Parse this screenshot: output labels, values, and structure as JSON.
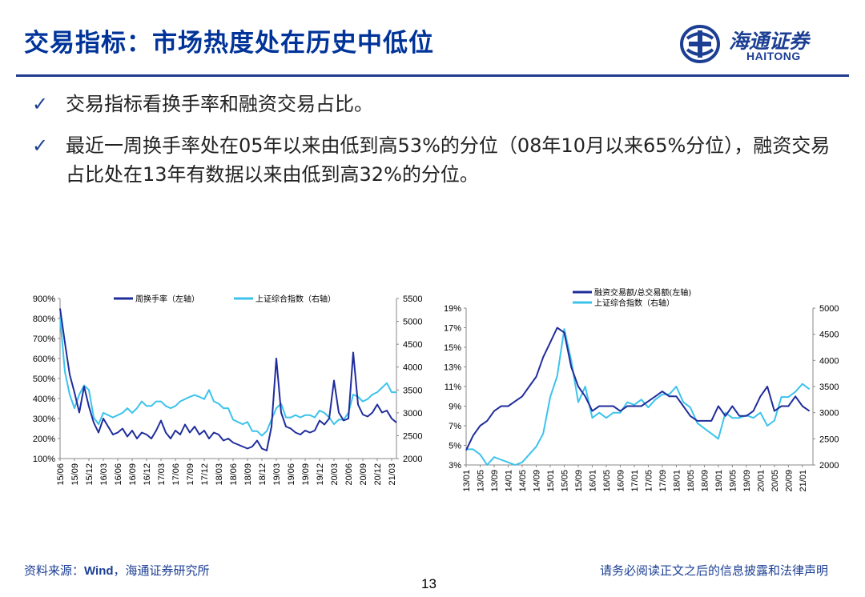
{
  "header": {
    "title": "交易指标：市场热度处在历史中低位",
    "logo_cn": "海通证券",
    "logo_en": "HAITONG"
  },
  "bullets": [
    {
      "icon": "check-icon",
      "text": "交易指标看换手率和融资交易占比。"
    },
    {
      "icon": "check-icon",
      "text": "最近一周换手率处在05年以来由低到高53%的分位（08年10月以来65%分位），融资交易占比处在13年有数据以来由低到高32%的分位。"
    }
  ],
  "colors": {
    "primary": "#1c3f94",
    "series_dark": "#1f2d9c",
    "series_light": "#3cc3ec",
    "title": "#003399"
  },
  "chart_data": [
    {
      "type": "line",
      "x_ticks": [
        "15/06",
        "15/09",
        "15/12",
        "16/03",
        "16/06",
        "16/09",
        "16/12",
        "17/03",
        "17/06",
        "17/09",
        "17/12",
        "18/03",
        "18/06",
        "18/09",
        "18/12",
        "19/03",
        "19/06",
        "19/09",
        "19/12",
        "20/03",
        "20/06",
        "20/09",
        "20/12",
        "21/03"
      ],
      "y_left_ticks": [
        "900%",
        "800%",
        "700%",
        "600%",
        "500%",
        "400%",
        "300%",
        "200%",
        "100%"
      ],
      "y_right_ticks": [
        "5500",
        "5000",
        "4500",
        "4000",
        "3500",
        "3000",
        "2500",
        "2000"
      ],
      "y_left_range": [
        100,
        900
      ],
      "y_right_range": [
        2000,
        5500
      ],
      "legend_position": "top",
      "grid": false,
      "series": [
        {
          "name": "周换手率（左轴）",
          "axis": "left",
          "color": "#1f2d9c",
          "x": [
            "15/06",
            "15/07",
            "15/08",
            "15/09",
            "15/10",
            "15/11",
            "15/12",
            "16/01",
            "16/02",
            "16/03",
            "16/04",
            "16/05",
            "16/06",
            "16/07",
            "16/08",
            "16/09",
            "16/10",
            "16/11",
            "16/12",
            "17/01",
            "17/02",
            "17/03",
            "17/04",
            "17/05",
            "17/06",
            "17/07",
            "17/08",
            "17/09",
            "17/10",
            "17/11",
            "17/12",
            "18/01",
            "18/02",
            "18/03",
            "18/04",
            "18/05",
            "18/06",
            "18/07",
            "18/08",
            "18/09",
            "18/10",
            "18/11",
            "18/12",
            "19/01",
            "19/02",
            "19/03",
            "19/04",
            "19/05",
            "19/06",
            "19/07",
            "19/08",
            "19/09",
            "19/10",
            "19/11",
            "19/12",
            "20/01",
            "20/02",
            "20/03",
            "20/04",
            "20/05",
            "20/06",
            "20/07",
            "20/08",
            "20/09",
            "20/10",
            "20/11",
            "20/12",
            "21/01",
            "21/02",
            "21/03",
            "21/04"
          ],
          "values": [
            850,
            680,
            520,
            430,
            330,
            460,
            360,
            280,
            230,
            300,
            260,
            220,
            230,
            250,
            210,
            240,
            200,
            230,
            220,
            200,
            240,
            290,
            230,
            200,
            240,
            220,
            270,
            230,
            260,
            220,
            240,
            200,
            230,
            220,
            190,
            200,
            180,
            170,
            160,
            150,
            160,
            190,
            150,
            140,
            260,
            600,
            330,
            260,
            250,
            230,
            220,
            240,
            230,
            240,
            290,
            270,
            300,
            490,
            330,
            290,
            300,
            630,
            370,
            320,
            310,
            330,
            370,
            330,
            340,
            300,
            280
          ]
        },
        {
          "name": "上证综合指数（右轴）",
          "axis": "right",
          "color": "#3cc3ec",
          "x": [
            "15/06",
            "15/07",
            "15/08",
            "15/09",
            "15/10",
            "15/11",
            "15/12",
            "16/01",
            "16/02",
            "16/03",
            "16/04",
            "16/05",
            "16/06",
            "16/07",
            "16/08",
            "16/09",
            "16/10",
            "16/11",
            "16/12",
            "17/01",
            "17/02",
            "17/03",
            "17/04",
            "17/05",
            "17/06",
            "17/07",
            "17/08",
            "17/09",
            "17/10",
            "17/11",
            "17/12",
            "18/01",
            "18/02",
            "18/03",
            "18/04",
            "18/05",
            "18/06",
            "18/07",
            "18/08",
            "18/09",
            "18/10",
            "18/11",
            "18/12",
            "19/01",
            "19/02",
            "19/03",
            "19/04",
            "19/05",
            "19/06",
            "19/07",
            "19/08",
            "19/09",
            "19/10",
            "19/11",
            "19/12",
            "20/01",
            "20/02",
            "20/03",
            "20/04",
            "20/05",
            "20/06",
            "20/07",
            "20/08",
            "20/09",
            "20/10",
            "20/11",
            "20/12",
            "21/01",
            "21/02",
            "21/03",
            "21/04"
          ],
          "values": [
            5100,
            3900,
            3400,
            3100,
            3400,
            3600,
            3500,
            2900,
            2750,
            3000,
            2950,
            2900,
            2950,
            3000,
            3100,
            3000,
            3100,
            3250,
            3150,
            3150,
            3250,
            3250,
            3150,
            3100,
            3150,
            3250,
            3300,
            3350,
            3390,
            3350,
            3300,
            3500,
            3250,
            3200,
            3100,
            3100,
            2850,
            2800,
            2750,
            2800,
            2600,
            2600,
            2500,
            2600,
            2850,
            3100,
            3200,
            2900,
            2900,
            2950,
            2900,
            2950,
            2950,
            2900,
            3050,
            3000,
            2900,
            2750,
            2850,
            2850,
            3000,
            3400,
            3350,
            3250,
            3300,
            3400,
            3450,
            3550,
            3650,
            3450,
            3450
          ]
        }
      ]
    },
    {
      "type": "line",
      "x_ticks": [
        "13/01",
        "13/05",
        "13/09",
        "14/01",
        "14/05",
        "14/09",
        "15/01",
        "15/05",
        "15/09",
        "16/01",
        "16/05",
        "16/09",
        "17/01",
        "17/05",
        "17/09",
        "18/01",
        "18/05",
        "18/09",
        "19/01",
        "19/05",
        "19/09",
        "20/01",
        "20/05",
        "20/09",
        "21/01"
      ],
      "y_left_ticks": [
        "19%",
        "17%",
        "15%",
        "13%",
        "11%",
        "9%",
        "7%",
        "5%",
        "3%"
      ],
      "y_right_ticks": [
        "5000",
        "4500",
        "4000",
        "3500",
        "3000",
        "2500",
        "2000"
      ],
      "y_left_range": [
        3,
        19
      ],
      "y_right_range": [
        2000,
        5000
      ],
      "legend_position": "top",
      "grid": false,
      "series": [
        {
          "name": "融资交易额/总交易额(左轴)",
          "axis": "left",
          "color": "#1f2d9c",
          "x": [
            "13/01",
            "13/03",
            "13/05",
            "13/07",
            "13/09",
            "13/11",
            "14/01",
            "14/03",
            "14/05",
            "14/07",
            "14/09",
            "14/11",
            "15/01",
            "15/03",
            "15/05",
            "15/07",
            "15/09",
            "15/11",
            "16/01",
            "16/03",
            "16/05",
            "16/07",
            "16/09",
            "16/11",
            "17/01",
            "17/03",
            "17/05",
            "17/07",
            "17/09",
            "17/11",
            "18/01",
            "18/03",
            "18/05",
            "18/07",
            "18/09",
            "18/11",
            "19/01",
            "19/03",
            "19/05",
            "19/07",
            "19/09",
            "19/11",
            "20/01",
            "20/03",
            "20/05",
            "20/07",
            "20/09",
            "20/11",
            "21/01",
            "21/03"
          ],
          "values": [
            4.5,
            6,
            7,
            7.5,
            8.5,
            9,
            9,
            9.5,
            10,
            11,
            12,
            14,
            15.5,
            17,
            16.5,
            13,
            11,
            10,
            8.5,
            9,
            9,
            9,
            8.5,
            9,
            9,
            9,
            9.5,
            10,
            10.5,
            10,
            10,
            9,
            8,
            7.5,
            7.5,
            7.5,
            9,
            8,
            9,
            8,
            8,
            8.5,
            10,
            11,
            8.5,
            9,
            9,
            10,
            9,
            8.5
          ]
        },
        {
          "name": "上证综合指数（右轴）",
          "axis": "right",
          "color": "#3cc3ec",
          "x": [
            "13/01",
            "13/03",
            "13/05",
            "13/07",
            "13/09",
            "13/11",
            "14/01",
            "14/03",
            "14/05",
            "14/07",
            "14/09",
            "14/11",
            "15/01",
            "15/03",
            "15/05",
            "15/07",
            "15/09",
            "15/11",
            "16/01",
            "16/03",
            "16/05",
            "16/07",
            "16/09",
            "16/11",
            "17/01",
            "17/03",
            "17/05",
            "17/07",
            "17/09",
            "17/11",
            "18/01",
            "18/03",
            "18/05",
            "18/07",
            "18/09",
            "18/11",
            "19/01",
            "19/03",
            "19/05",
            "19/07",
            "19/09",
            "19/11",
            "20/01",
            "20/03",
            "20/05",
            "20/07",
            "20/09",
            "20/11",
            "21/01",
            "21/03"
          ],
          "values": [
            2300,
            2300,
            2200,
            2000,
            2150,
            2100,
            2050,
            2000,
            2050,
            2200,
            2350,
            2600,
            3300,
            3700,
            4600,
            4000,
            3200,
            3500,
            2900,
            3000,
            2900,
            3000,
            3000,
            3200,
            3150,
            3250,
            3100,
            3250,
            3350,
            3350,
            3500,
            3200,
            3100,
            2800,
            2700,
            2600,
            2500,
            3000,
            2900,
            2900,
            2950,
            2900,
            3000,
            2750,
            2850,
            3300,
            3300,
            3400,
            3550,
            3450
          ]
        }
      ]
    }
  ],
  "footer": {
    "source_prefix": "资料来源：",
    "source_wind": "Wind",
    "source_suffix": "，海通证券研究所",
    "disclaimer": "请务必阅读正文之后的信息披露和法律声明",
    "page_number": "13"
  }
}
